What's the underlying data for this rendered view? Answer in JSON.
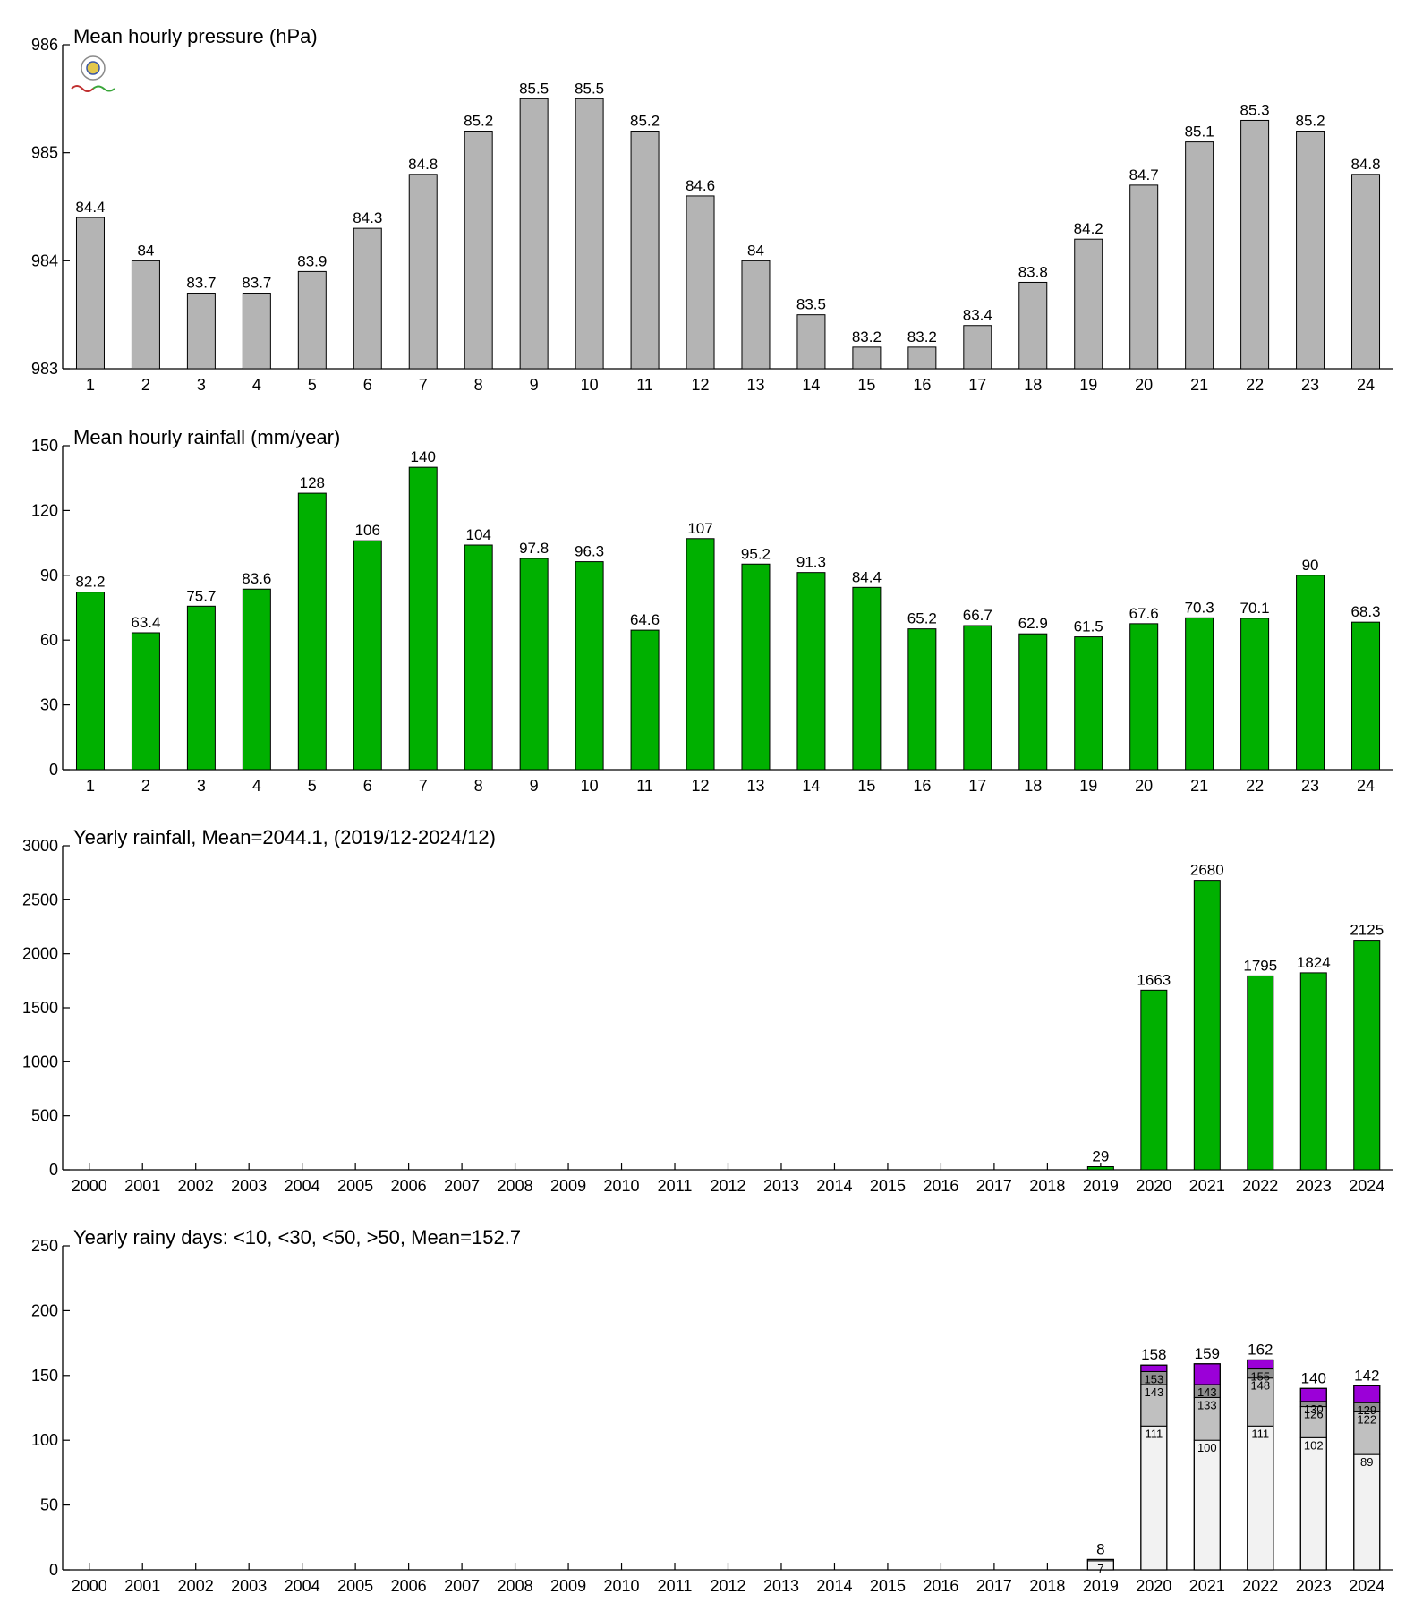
{
  "chart_data": [
    {
      "type": "bar",
      "title": "Mean hourly pressure (hPa)",
      "categories": [
        "1",
        "2",
        "3",
        "4",
        "5",
        "6",
        "7",
        "8",
        "9",
        "10",
        "11",
        "12",
        "13",
        "14",
        "15",
        "16",
        "17",
        "18",
        "19",
        "20",
        "21",
        "22",
        "23",
        "24"
      ],
      "values": [
        984.4,
        984.0,
        983.7,
        983.7,
        983.9,
        984.3,
        984.8,
        985.2,
        985.5,
        985.5,
        985.2,
        984.6,
        984.0,
        983.5,
        983.2,
        983.2,
        983.4,
        983.8,
        984.2,
        984.7,
        985.1,
        985.3,
        985.2,
        984.8
      ],
      "value_labels": [
        "84.4",
        "84",
        "83.7",
        "83.7",
        "83.9",
        "84.3",
        "84.8",
        "85.2",
        "85.5",
        "85.5",
        "85.2",
        "84.6",
        "84",
        "83.5",
        "83.2",
        "83.2",
        "83.4",
        "83.8",
        "84.2",
        "84.7",
        "85.1",
        "85.3",
        "85.2",
        "84.8"
      ],
      "ylim": [
        983,
        986
      ],
      "yticks": [
        983,
        984,
        985,
        986
      ],
      "color": "#b4b4b4"
    },
    {
      "type": "bar",
      "title": "Mean hourly rainfall (mm/year)",
      "categories": [
        "1",
        "2",
        "3",
        "4",
        "5",
        "6",
        "7",
        "8",
        "9",
        "10",
        "11",
        "12",
        "13",
        "14",
        "15",
        "16",
        "17",
        "18",
        "19",
        "20",
        "21",
        "22",
        "23",
        "24"
      ],
      "values": [
        82.2,
        63.4,
        75.7,
        83.6,
        128,
        106,
        140,
        104,
        97.8,
        96.3,
        64.6,
        107,
        95.2,
        91.3,
        84.4,
        65.2,
        66.7,
        62.9,
        61.5,
        67.6,
        70.3,
        70.1,
        90,
        68.3
      ],
      "value_labels": [
        "82.2",
        "63.4",
        "75.7",
        "83.6",
        "128",
        "106",
        "140",
        "104",
        "97.8",
        "96.3",
        "64.6",
        "107",
        "95.2",
        "91.3",
        "84.4",
        "65.2",
        "66.7",
        "62.9",
        "61.5",
        "67.6",
        "70.3",
        "70.1",
        "90",
        "68.3"
      ],
      "ylim": [
        0,
        150
      ],
      "yticks": [
        0,
        30,
        60,
        90,
        120,
        150
      ],
      "color": "#00b000"
    },
    {
      "type": "bar",
      "title": "Yearly rainfall, Mean=2044.1, (2019/12-2024/12)",
      "categories": [
        "2000",
        "2001",
        "2002",
        "2003",
        "2004",
        "2005",
        "2006",
        "2007",
        "2008",
        "2009",
        "2010",
        "2011",
        "2012",
        "2013",
        "2014",
        "2015",
        "2016",
        "2017",
        "2018",
        "2019",
        "2020",
        "2021",
        "2022",
        "2023",
        "2024"
      ],
      "values": [
        null,
        null,
        null,
        null,
        null,
        null,
        null,
        null,
        null,
        null,
        null,
        null,
        null,
        null,
        null,
        null,
        null,
        null,
        null,
        29,
        1663,
        2680,
        1795,
        1824,
        2125
      ],
      "value_labels": [
        "",
        "",
        "",
        "",
        "",
        "",
        "",
        "",
        "",
        "",
        "",
        "",
        "",
        "",
        "",
        "",
        "",
        "",
        "",
        "29",
        "1663",
        "2680",
        "1795",
        "1824",
        "2125"
      ],
      "ylim": [
        0,
        3000
      ],
      "yticks": [
        0,
        500,
        1000,
        1500,
        2000,
        2500,
        3000
      ],
      "color": "#00b000"
    },
    {
      "type": "bar",
      "stacked": true,
      "title": "Yearly rainy days: <10, <30, <50, >50, Mean=152.7",
      "categories": [
        "2000",
        "2001",
        "2002",
        "2003",
        "2004",
        "2005",
        "2006",
        "2007",
        "2008",
        "2009",
        "2010",
        "2011",
        "2012",
        "2013",
        "2014",
        "2015",
        "2016",
        "2017",
        "2018",
        "2019",
        "2020",
        "2021",
        "2022",
        "2023",
        "2024"
      ],
      "cumulative": [
        {
          "index": 19,
          "levels": [
            7,
            8,
            8,
            8
          ],
          "labels": [
            "7",
            "",
            "",
            "8"
          ]
        },
        {
          "index": 20,
          "levels": [
            111,
            143,
            153,
            158
          ],
          "labels": [
            "111",
            "143",
            "153",
            "158"
          ]
        },
        {
          "index": 21,
          "levels": [
            100,
            133,
            143,
            159
          ],
          "labels": [
            "100",
            "133",
            "143",
            "159"
          ]
        },
        {
          "index": 22,
          "levels": [
            111,
            148,
            155,
            162
          ],
          "labels": [
            "111",
            "148",
            "155",
            "162"
          ]
        },
        {
          "index": 23,
          "levels": [
            102,
            126,
            130,
            140
          ],
          "labels": [
            "102",
            "126",
            "130",
            "140"
          ]
        },
        {
          "index": 24,
          "levels": [
            89,
            122,
            129,
            142
          ],
          "labels": [
            "89",
            "122",
            "129",
            "142"
          ]
        }
      ],
      "segment_colors": [
        "#f2f2f2",
        "#c0c0c0",
        "#909090",
        "#9b00d8"
      ],
      "ylim": [
        0,
        250
      ],
      "yticks": [
        0,
        50,
        100,
        150,
        200,
        250
      ]
    }
  ]
}
